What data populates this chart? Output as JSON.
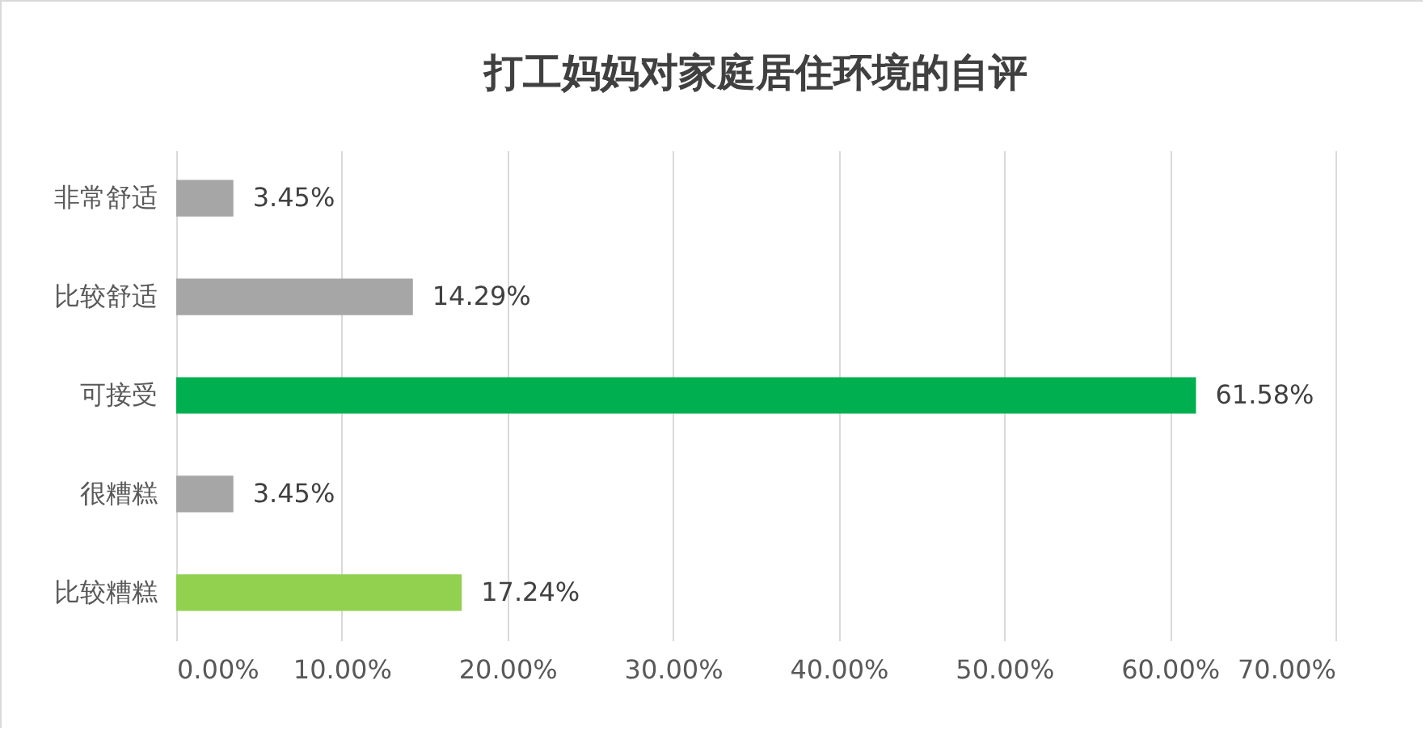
{
  "chart_data": {
    "type": "bar",
    "orientation": "horizontal",
    "title": "打工妈妈对家庭居住环境的自评",
    "categories": [
      "非常舒适",
      "比较舒适",
      "可接受",
      "很糟糕",
      "比较糟糕"
    ],
    "values": [
      3.45,
      14.29,
      61.58,
      3.45,
      17.24
    ],
    "colors": [
      "#a6a6a6",
      "#a6a6a6",
      "#00b050",
      "#a6a6a6",
      "#92d050"
    ],
    "value_labels": [
      "3.45%",
      "14.29%",
      "61.58%",
      "3.45%",
      "17.24%"
    ],
    "xlim": [
      0,
      70
    ],
    "xticks": [
      {
        "value": 0,
        "label": "0.00%"
      },
      {
        "value": 10,
        "label": "10.00%"
      },
      {
        "value": 20,
        "label": "20.00%"
      },
      {
        "value": 30,
        "label": "30.00%"
      },
      {
        "value": 40,
        "label": "40.00%"
      },
      {
        "value": 50,
        "label": "50.00%"
      },
      {
        "value": 60,
        "label": "60.00%"
      },
      {
        "value": 70,
        "label": "70.00%"
      }
    ],
    "grid": "x",
    "legend": false
  }
}
